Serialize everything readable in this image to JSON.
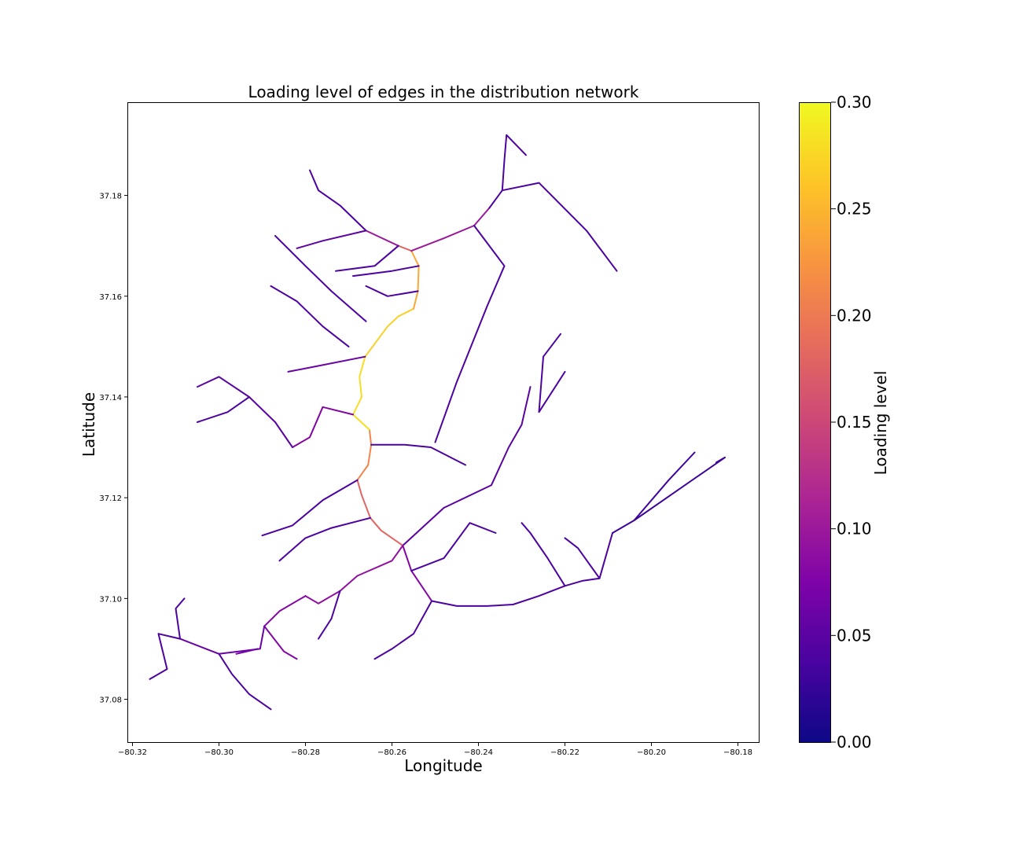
{
  "chart_data": {
    "type": "network-line",
    "title": "Loading level of edges in the distribution network",
    "xlabel": "Longitude",
    "ylabel": "Latitude",
    "xlim": [
      -80.321,
      -80.175
    ],
    "ylim": [
      37.0715,
      37.1985
    ],
    "xticks": [
      -80.32,
      -80.3,
      -80.28,
      -80.26,
      -80.24,
      -80.22,
      -80.2,
      -80.18
    ],
    "xtick_labels": [
      "−80.32",
      "−80.30",
      "−80.28",
      "−80.26",
      "−80.24",
      "−80.22",
      "−80.20",
      "−80.18"
    ],
    "yticks": [
      37.08,
      37.1,
      37.12,
      37.14,
      37.16,
      37.18
    ],
    "ytick_labels": [
      "37.08",
      "37.10",
      "37.12",
      "37.14",
      "37.16",
      "37.18"
    ],
    "colorbar": {
      "label": "Loading level",
      "colormap": "plasma",
      "range": [
        0.0,
        0.3
      ],
      "ticks": [
        0.0,
        0.05,
        0.1,
        0.15,
        0.2,
        0.25,
        0.3
      ],
      "tick_labels": [
        "0.00",
        "0.05",
        "0.10",
        "0.15",
        "0.20",
        "0.25",
        "0.30"
      ]
    },
    "edges": [
      {
        "path": [
          [
            -80.2508,
            37.0995
          ],
          [
            -80.2555,
            37.1055
          ],
          [
            -80.2575,
            37.1105
          ]
        ],
        "load": 0.08
      },
      {
        "path": [
          [
            -80.2575,
            37.1105
          ],
          [
            -80.2625,
            37.1135
          ],
          [
            -80.265,
            37.116
          ],
          [
            -80.267,
            37.1205
          ],
          [
            -80.268,
            37.1235
          ]
        ],
        "load": 0.18
      },
      {
        "path": [
          [
            -80.268,
            37.1235
          ],
          [
            -80.2655,
            37.1265
          ],
          [
            -80.2648,
            37.1305
          ],
          [
            -80.2652,
            37.1335
          ]
        ],
        "load": 0.21
      },
      {
        "path": [
          [
            -80.2652,
            37.1335
          ],
          [
            -80.269,
            37.1365
          ],
          [
            -80.267,
            37.14
          ],
          [
            -80.2675,
            37.144
          ],
          [
            -80.2662,
            37.148
          ]
        ],
        "load": 0.28
      },
      {
        "path": [
          [
            -80.2662,
            37.148
          ],
          [
            -80.261,
            37.154
          ],
          [
            -80.2585,
            37.156
          ],
          [
            -80.255,
            37.1575
          ]
        ],
        "load": 0.27
      },
      {
        "path": [
          [
            -80.255,
            37.1575
          ],
          [
            -80.254,
            37.161
          ],
          [
            -80.2538,
            37.166
          ],
          [
            -80.2555,
            37.169
          ]
        ],
        "load": 0.24
      },
      {
        "path": [
          [
            -80.2555,
            37.169
          ],
          [
            -80.2585,
            37.17
          ]
        ],
        "load": 0.18
      },
      {
        "path": [
          [
            -80.2555,
            37.169
          ],
          [
            -80.248,
            37.1715
          ],
          [
            -80.241,
            37.174
          ],
          [
            -80.2375,
            37.1775
          ]
        ],
        "load": 0.1
      },
      {
        "path": [
          [
            -80.2585,
            37.17
          ],
          [
            -80.2635,
            37.172
          ],
          [
            -80.266,
            37.173
          ]
        ],
        "load": 0.1
      },
      {
        "path": [
          [
            -80.2575,
            37.1105
          ],
          [
            -80.248,
            37.118
          ],
          [
            -80.237,
            37.1225
          ],
          [
            -80.233,
            37.13
          ],
          [
            -80.23,
            37.1345
          ],
          [
            -80.228,
            37.142
          ]
        ],
        "load": 0.05
      },
      {
        "path": [
          [
            -80.2575,
            37.1105
          ],
          [
            -80.26,
            37.1075
          ],
          [
            -80.268,
            37.1045
          ],
          [
            -80.272,
            37.1015
          ],
          [
            -80.277,
            37.099
          ],
          [
            -80.28,
            37.1005
          ]
        ],
        "load": 0.09
      },
      {
        "path": [
          [
            -80.28,
            37.1005
          ],
          [
            -80.286,
            37.0975
          ],
          [
            -80.2895,
            37.0945
          ],
          [
            -80.285,
            37.0895
          ],
          [
            -80.282,
            37.088
          ]
        ],
        "load": 0.08
      },
      {
        "path": [
          [
            -80.2895,
            37.0945
          ],
          [
            -80.2905,
            37.09
          ],
          [
            -80.3,
            37.089
          ],
          [
            -80.309,
            37.092
          ]
        ],
        "load": 0.06
      },
      {
        "path": [
          [
            -80.291,
            37.09
          ],
          [
            -80.296,
            37.089
          ]
        ],
        "load": 0.07
      },
      {
        "path": [
          [
            -80.2508,
            37.0995
          ],
          [
            -80.245,
            37.0985
          ],
          [
            -80.238,
            37.0985
          ],
          [
            -80.232,
            37.0988
          ],
          [
            -80.226,
            37.1005
          ],
          [
            -80.22,
            37.1025
          ],
          [
            -80.216,
            37.1035
          ],
          [
            -80.212,
            37.104
          ],
          [
            -80.209,
            37.113
          ]
        ],
        "load": 0.04
      },
      {
        "path": [
          [
            -80.209,
            37.113
          ],
          [
            -80.204,
            37.1155
          ],
          [
            -80.196,
            37.1235
          ],
          [
            -80.19,
            37.129
          ]
        ],
        "load": 0.03
      },
      {
        "path": [
          [
            -80.204,
            37.1155
          ],
          [
            -80.183,
            37.128
          ],
          [
            -80.185,
            37.127
          ]
        ],
        "load": 0.03
      },
      {
        "path": [
          [
            -80.2662,
            37.148
          ],
          [
            -80.278,
            37.146
          ],
          [
            -80.284,
            37.145
          ]
        ],
        "load": 0.06
      },
      {
        "path": [
          [
            -80.269,
            37.1365
          ],
          [
            -80.276,
            37.138
          ],
          [
            -80.279,
            37.132
          ],
          [
            -80.283,
            37.13
          ]
        ],
        "load": 0.08
      },
      {
        "path": [
          [
            -80.2648,
            37.1305
          ],
          [
            -80.257,
            37.1305
          ],
          [
            -80.251,
            37.13
          ],
          [
            -80.243,
            37.1265
          ]
        ],
        "load": 0.04
      },
      {
        "path": [
          [
            -80.268,
            37.1235
          ],
          [
            -80.276,
            37.1195
          ],
          [
            -80.283,
            37.1145
          ],
          [
            -80.29,
            37.1125
          ]
        ],
        "load": 0.04
      },
      {
        "path": [
          [
            -80.265,
            37.116
          ],
          [
            -80.274,
            37.114
          ],
          [
            -80.28,
            37.112
          ],
          [
            -80.286,
            37.1075
          ]
        ],
        "load": 0.04
      },
      {
        "path": [
          [
            -80.2585,
            37.17
          ],
          [
            -80.264,
            37.166
          ],
          [
            -80.273,
            37.165
          ]
        ],
        "load": 0.04
      },
      {
        "path": [
          [
            -80.266,
            37.173
          ],
          [
            -80.276,
            37.171
          ],
          [
            -80.282,
            37.1695
          ]
        ],
        "load": 0.05
      },
      {
        "path": [
          [
            -80.266,
            37.173
          ],
          [
            -80.272,
            37.178
          ],
          [
            -80.277,
            37.181
          ],
          [
            -80.279,
            37.185
          ]
        ],
        "load": 0.04
      },
      {
        "path": [
          [
            -80.2375,
            37.1775
          ],
          [
            -80.2345,
            37.181
          ],
          [
            -80.226,
            37.1825
          ],
          [
            -80.215,
            37.173
          ],
          [
            -80.208,
            37.165
          ]
        ],
        "load": 0.04
      },
      {
        "path": [
          [
            -80.2345,
            37.181
          ],
          [
            -80.234,
            37.187
          ],
          [
            -80.2335,
            37.192
          ],
          [
            -80.229,
            37.188
          ]
        ],
        "load": 0.04
      },
      {
        "path": [
          [
            -80.241,
            37.174
          ],
          [
            -80.234,
            37.166
          ],
          [
            -80.238,
            37.158
          ],
          [
            -80.245,
            37.143
          ],
          [
            -80.25,
            37.131
          ]
        ],
        "load": 0.04
      },
      {
        "path": [
          [
            -80.22,
            37.145
          ],
          [
            -80.226,
            37.137
          ],
          [
            -80.225,
            37.148
          ],
          [
            -80.221,
            37.1525
          ]
        ],
        "load": 0.04
      },
      {
        "path": [
          [
            -80.266,
            37.155
          ],
          [
            -80.274,
            37.161
          ],
          [
            -80.28,
            37.166
          ],
          [
            -80.287,
            37.172
          ]
        ],
        "load": 0.04
      },
      {
        "path": [
          [
            -80.27,
            37.15
          ],
          [
            -80.276,
            37.154
          ],
          [
            -80.282,
            37.159
          ],
          [
            -80.288,
            37.162
          ]
        ],
        "load": 0.04
      },
      {
        "path": [
          [
            -80.283,
            37.13
          ],
          [
            -80.287,
            37.135
          ],
          [
            -80.293,
            37.14
          ],
          [
            -80.3,
            37.144
          ],
          [
            -80.305,
            37.142
          ]
        ],
        "load": 0.05
      },
      {
        "path": [
          [
            -80.293,
            37.14
          ],
          [
            -80.298,
            37.137
          ],
          [
            -80.305,
            37.135
          ]
        ],
        "load": 0.04
      },
      {
        "path": [
          [
            -80.309,
            37.092
          ],
          [
            -80.314,
            37.093
          ],
          [
            -80.312,
            37.086
          ],
          [
            -80.316,
            37.084
          ]
        ],
        "load": 0.04
      },
      {
        "path": [
          [
            -80.309,
            37.092
          ],
          [
            -80.31,
            37.098
          ],
          [
            -80.308,
            37.1
          ]
        ],
        "load": 0.04
      },
      {
        "path": [
          [
            -80.3,
            37.089
          ],
          [
            -80.297,
            37.085
          ],
          [
            -80.293,
            37.081
          ],
          [
            -80.288,
            37.078
          ]
        ],
        "load": 0.04
      },
      {
        "path": [
          [
            -80.2508,
            37.0995
          ],
          [
            -80.255,
            37.093
          ],
          [
            -80.26,
            37.09
          ],
          [
            -80.264,
            37.088
          ]
        ],
        "load": 0.04
      },
      {
        "path": [
          [
            -80.2555,
            37.1055
          ],
          [
            -80.248,
            37.108
          ],
          [
            -80.242,
            37.115
          ],
          [
            -80.236,
            37.113
          ]
        ],
        "load": 0.04
      },
      {
        "path": [
          [
            -80.272,
            37.1015
          ],
          [
            -80.274,
            37.096
          ],
          [
            -80.277,
            37.092
          ]
        ],
        "load": 0.04
      },
      {
        "path": [
          [
            -80.22,
            37.1025
          ],
          [
            -80.224,
            37.108
          ],
          [
            -80.228,
            37.113
          ],
          [
            -80.23,
            37.115
          ]
        ],
        "load": 0.04
      },
      {
        "path": [
          [
            -80.212,
            37.104
          ],
          [
            -80.217,
            37.11
          ],
          [
            -80.22,
            37.112
          ]
        ],
        "load": 0.04
      },
      {
        "path": [
          [
            -80.254,
            37.161
          ],
          [
            -80.261,
            37.16
          ],
          [
            -80.266,
            37.162
          ]
        ],
        "load": 0.04
      },
      {
        "path": [
          [
            -80.2538,
            37.166
          ],
          [
            -80.26,
            37.165
          ],
          [
            -80.269,
            37.164
          ]
        ],
        "load": 0.04
      }
    ]
  }
}
